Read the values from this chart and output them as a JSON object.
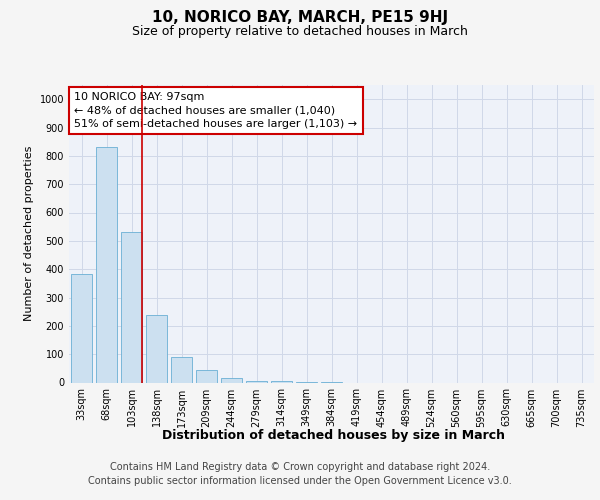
{
  "title": "10, NORICO BAY, MARCH, PE15 9HJ",
  "subtitle": "Size of property relative to detached houses in March",
  "xlabel": "Distribution of detached houses by size in March",
  "ylabel": "Number of detached properties",
  "categories": [
    "33sqm",
    "68sqm",
    "103sqm",
    "138sqm",
    "173sqm",
    "209sqm",
    "244sqm",
    "279sqm",
    "314sqm",
    "349sqm",
    "384sqm",
    "419sqm",
    "454sqm",
    "489sqm",
    "524sqm",
    "560sqm",
    "595sqm",
    "630sqm",
    "665sqm",
    "700sqm",
    "735sqm"
  ],
  "values": [
    383,
    830,
    530,
    240,
    90,
    45,
    15,
    7,
    4,
    2,
    1,
    0,
    0,
    0,
    0,
    0,
    0,
    0,
    0,
    0,
    0
  ],
  "bar_color": "#cce0f0",
  "bar_edge_color": "#6aafd4",
  "grid_color": "#d0d8e8",
  "background_color": "#eef2f9",
  "red_line_index": 2,
  "annotation_text": "10 NORICO BAY: 97sqm\n← 48% of detached houses are smaller (1,040)\n51% of semi-detached houses are larger (1,103) →",
  "annotation_box_color": "#ffffff",
  "annotation_box_edge": "#cc0000",
  "red_line_color": "#cc0000",
  "ylim": [
    0,
    1050
  ],
  "yticks": [
    0,
    100,
    200,
    300,
    400,
    500,
    600,
    700,
    800,
    900,
    1000
  ],
  "footer_line1": "Contains HM Land Registry data © Crown copyright and database right 2024.",
  "footer_line2": "Contains public sector information licensed under the Open Government Licence v3.0.",
  "title_fontsize": 11,
  "subtitle_fontsize": 9,
  "xlabel_fontsize": 9,
  "ylabel_fontsize": 8,
  "tick_fontsize": 7,
  "annotation_fontsize": 8,
  "footer_fontsize": 7
}
